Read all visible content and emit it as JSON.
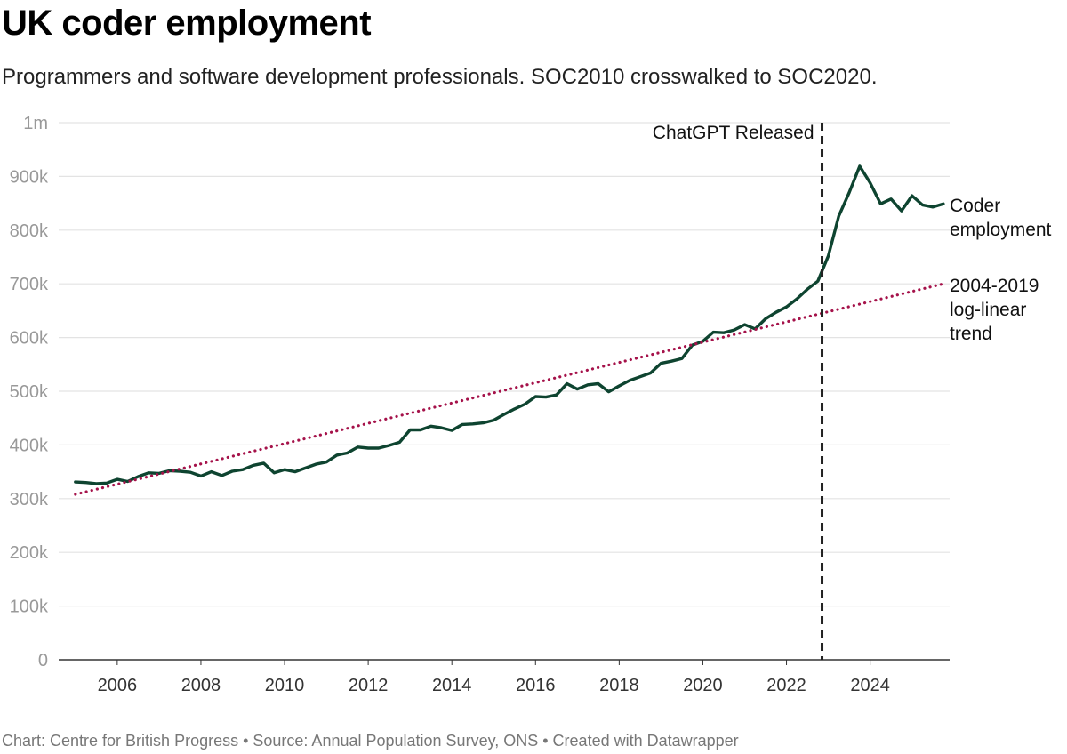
{
  "header": {
    "title": "UK coder employment",
    "subtitle": "Programmers and software development professionals. SOC2010 crosswalked to SOC2020."
  },
  "footer": {
    "text": "Chart: Centre for British Progress • Source: Annual Population Survey, ONS • Created with Datawrapper"
  },
  "colors": {
    "series": "#0e4430",
    "trend": "#a5124a",
    "gridline": "#e3e3e3",
    "marker": "#222222"
  },
  "chart_data": {
    "type": "line",
    "title": "UK coder employment",
    "xlabel": "",
    "ylabel": "",
    "xlim": [
      2004.6,
      2025.9
    ],
    "ylim": [
      0,
      1000000
    ],
    "y_ticks": [
      {
        "value": 0,
        "label": "0"
      },
      {
        "value": 100000,
        "label": "100k"
      },
      {
        "value": 200000,
        "label": "200k"
      },
      {
        "value": 300000,
        "label": "300k"
      },
      {
        "value": 400000,
        "label": "400k"
      },
      {
        "value": 500000,
        "label": "500k"
      },
      {
        "value": 600000,
        "label": "600k"
      },
      {
        "value": 700000,
        "label": "700k"
      },
      {
        "value": 800000,
        "label": "800k"
      },
      {
        "value": 900000,
        "label": "900k"
      },
      {
        "value": 1000000,
        "label": "1m"
      }
    ],
    "x_ticks": [
      {
        "value": 2006,
        "label": "2006"
      },
      {
        "value": 2008,
        "label": "2008"
      },
      {
        "value": 2010,
        "label": "2010"
      },
      {
        "value": 2012,
        "label": "2012"
      },
      {
        "value": 2014,
        "label": "2014"
      },
      {
        "value": 2016,
        "label": "2016"
      },
      {
        "value": 2018,
        "label": "2018"
      },
      {
        "value": 2020,
        "label": "2020"
      },
      {
        "value": 2022,
        "label": "2022"
      },
      {
        "value": 2024,
        "label": "2024"
      }
    ],
    "series": [
      {
        "name": "Coder employment",
        "label_lines": [
          "Coder",
          "employment"
        ],
        "style": "solid",
        "color": "#0e4430",
        "x": [
          2005.0,
          2005.25,
          2005.5,
          2005.75,
          2006.0,
          2006.25,
          2006.5,
          2006.75,
          2007.0,
          2007.25,
          2007.5,
          2007.75,
          2008.0,
          2008.25,
          2008.5,
          2008.75,
          2009.0,
          2009.25,
          2009.5,
          2009.75,
          2010.0,
          2010.25,
          2010.5,
          2010.75,
          2011.0,
          2011.25,
          2011.5,
          2011.75,
          2012.0,
          2012.25,
          2012.5,
          2012.75,
          2013.0,
          2013.25,
          2013.5,
          2013.75,
          2014.0,
          2014.25,
          2014.5,
          2014.75,
          2015.0,
          2015.25,
          2015.5,
          2015.75,
          2016.0,
          2016.25,
          2016.5,
          2016.75,
          2017.0,
          2017.25,
          2017.5,
          2017.75,
          2018.0,
          2018.25,
          2018.5,
          2018.75,
          2019.0,
          2019.25,
          2019.5,
          2019.75,
          2020.0,
          2020.25,
          2020.5,
          2020.75,
          2021.0,
          2021.25,
          2021.5,
          2021.75,
          2022.0,
          2022.25,
          2022.5,
          2022.75,
          2023.0,
          2023.25,
          2023.5,
          2023.75,
          2024.0,
          2024.25,
          2024.5,
          2024.75,
          2025.0,
          2025.25,
          2025.5,
          2025.75
        ],
        "values": [
          331000,
          330000,
          328000,
          329000,
          336000,
          332000,
          341000,
          348000,
          347000,
          352000,
          351000,
          349000,
          342000,
          350000,
          343000,
          351000,
          354000,
          362000,
          366000,
          348000,
          354000,
          350000,
          357000,
          364000,
          368000,
          381000,
          385000,
          396000,
          394000,
          394000,
          399000,
          405000,
          428000,
          428000,
          435000,
          432000,
          427000,
          438000,
          439000,
          441000,
          446000,
          457000,
          467000,
          476000,
          490000,
          489000,
          493000,
          514000,
          504000,
          512000,
          514000,
          499000,
          510000,
          520000,
          527000,
          534000,
          552000,
          556000,
          561000,
          586000,
          593000,
          610000,
          609000,
          614000,
          624000,
          616000,
          635000,
          647000,
          657000,
          672000,
          690000,
          705000,
          752000,
          826000,
          870000,
          919000,
          888000,
          849000,
          858000,
          836000,
          864000,
          847000,
          843000,
          849000
        ]
      },
      {
        "name": "2004-2019 log-linear trend",
        "label_lines": [
          "2004-2019",
          "log-linear",
          "trend"
        ],
        "style": "dotted",
        "color": "#a5124a",
        "x": [
          2005.0,
          2025.75
        ],
        "values": [
          308000,
          700000
        ]
      }
    ],
    "annotations": [
      {
        "type": "vline",
        "x": 2022.85,
        "label": "ChatGPT Released",
        "style": "dashed"
      }
    ],
    "grid": true,
    "legend": "direct labels at right end of lines"
  }
}
